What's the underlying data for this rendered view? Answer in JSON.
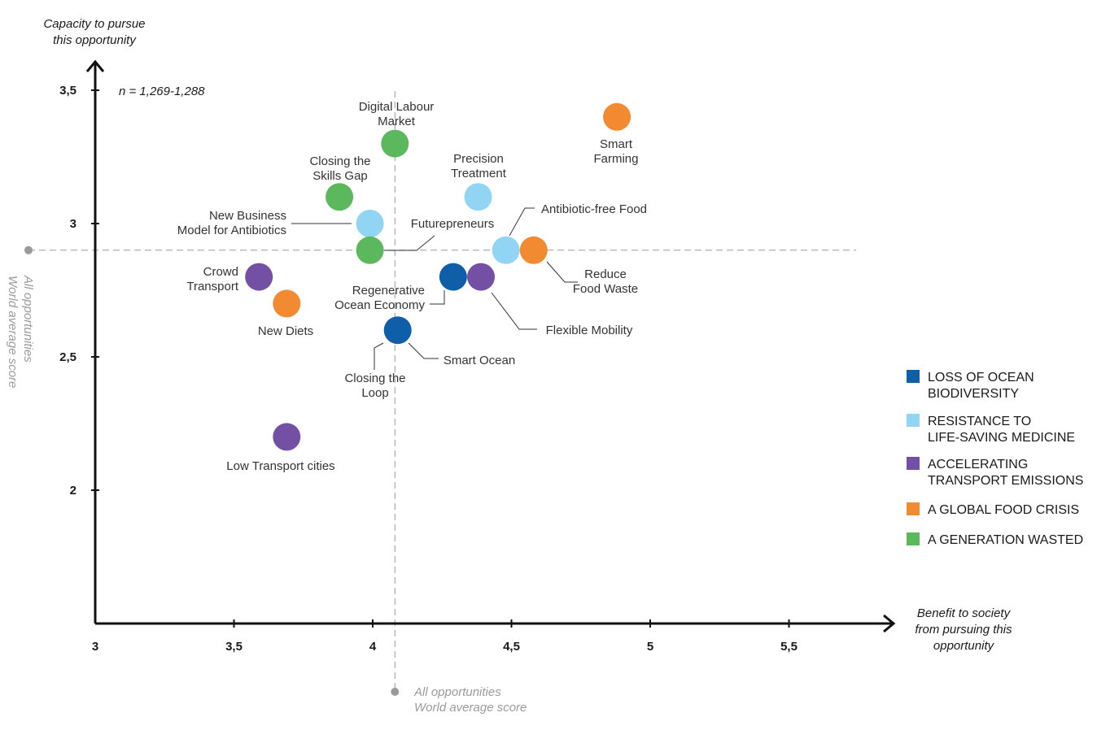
{
  "chart_data": {
    "type": "scatter",
    "xlabel": [
      "Benefit to society",
      "from pursuing this",
      "opportunity"
    ],
    "ylabel": [
      "Capacity to pursue",
      "this opportunity"
    ],
    "xlim": [
      3,
      5.9
    ],
    "ylim": [
      1.5,
      3.6
    ],
    "xticks": [
      {
        "value": 3,
        "label": "3"
      },
      {
        "value": 3.5,
        "label": "3,5"
      },
      {
        "value": 4,
        "label": "4"
      },
      {
        "value": 4.5,
        "label": "4,5"
      },
      {
        "value": 5,
        "label": "5"
      },
      {
        "value": 5.5,
        "label": "5,5"
      }
    ],
    "yticks": [
      {
        "value": 2,
        "label": "2"
      },
      {
        "value": 2.5,
        "label": "2,5"
      },
      {
        "value": 3,
        "label": "3"
      },
      {
        "value": 3.5,
        "label": "3,5"
      }
    ],
    "annotation": "n = 1,269-1,288",
    "world_average": {
      "x": 4.08,
      "y": 2.9,
      "x_label": [
        "All opportunities",
        "World average score"
      ],
      "y_label": [
        "All opportunities",
        "World average score"
      ]
    },
    "categories": [
      {
        "id": "ocean",
        "name": "LOSS OF OCEAN BIODIVERSITY",
        "lines": [
          "LOSS OF OCEAN",
          "BIODIVERSITY"
        ],
        "color": "#0f5fa8"
      },
      {
        "id": "medicine",
        "name": "RESISTANCE TO LIFE-SAVING MEDICINE",
        "lines": [
          "RESISTANCE TO",
          "LIFE-SAVING MEDICINE"
        ],
        "color": "#92d4f4"
      },
      {
        "id": "transport",
        "name": "ACCELERATING TRANSPORT EMISSIONS",
        "lines": [
          "ACCELERATING",
          "TRANSPORT EMISSIONS"
        ],
        "color": "#7450a4"
      },
      {
        "id": "food",
        "name": "A GLOBAL FOOD CRISIS",
        "lines": [
          "A GLOBAL FOOD CRISIS"
        ],
        "color": "#f28a32"
      },
      {
        "id": "generation",
        "name": "A GENERATION WASTED",
        "lines": [
          "A GENERATION WASTED"
        ],
        "color": "#5cb85c"
      }
    ],
    "points": [
      {
        "name": "Digital Labour Market",
        "lines": [
          "Digital Labour",
          "Market"
        ],
        "x": 4.08,
        "y": 3.3,
        "category": "generation"
      },
      {
        "name": "Smart Farming",
        "lines": [
          "Smart",
          "Farming"
        ],
        "x": 4.88,
        "y": 3.4,
        "category": "food"
      },
      {
        "name": "Closing the Skills Gap",
        "lines": [
          "Closing the",
          "Skills Gap"
        ],
        "x": 3.88,
        "y": 3.1,
        "category": "generation"
      },
      {
        "name": "Precision Treatment",
        "lines": [
          "Precision",
          "Treatment"
        ],
        "x": 4.38,
        "y": 3.1,
        "category": "medicine"
      },
      {
        "name": "New Business Model for Antibiotics",
        "lines": [
          "New Business",
          "Model for Antibiotics"
        ],
        "x": 3.99,
        "y": 3.0,
        "category": "medicine"
      },
      {
        "name": "Futurepreneurs",
        "lines": [
          "Futurepreneurs"
        ],
        "x": 3.99,
        "y": 2.9,
        "category": "generation"
      },
      {
        "name": "Antibiotic-free Food",
        "lines": [
          "Antibiotic-free Food"
        ],
        "x": 4.48,
        "y": 2.9,
        "category": "medicine"
      },
      {
        "name": "Reduce Food Waste",
        "lines": [
          "Reduce",
          "Food Waste"
        ],
        "x": 4.58,
        "y": 2.9,
        "category": "food"
      },
      {
        "name": "Crowd Transport",
        "lines": [
          "Crowd",
          "Transport"
        ],
        "x": 3.59,
        "y": 2.8,
        "category": "transport"
      },
      {
        "name": "Regenerative Ocean Economy",
        "lines": [
          "Regenerative",
          "Ocean Economy"
        ],
        "x": 4.29,
        "y": 2.8,
        "category": "ocean"
      },
      {
        "name": "Flexible Mobility",
        "lines": [
          "Flexible Mobility"
        ],
        "x": 4.39,
        "y": 2.8,
        "category": "transport"
      },
      {
        "name": "New Diets",
        "lines": [
          "New Diets"
        ],
        "x": 3.69,
        "y": 2.7,
        "category": "food"
      },
      {
        "name": "Smart Ocean",
        "lines": [
          "Smart Ocean"
        ],
        "x": 4.09,
        "y": 2.6,
        "category": "ocean"
      },
      {
        "name": "Closing the Loop",
        "lines": [
          "Closing the",
          "Loop"
        ],
        "x": 4.09,
        "y": 2.6,
        "category": "ocean",
        "hidden": true
      },
      {
        "name": "Low Transport cities",
        "lines": [
          "Low Transport cities"
        ],
        "x": 3.69,
        "y": 2.2,
        "category": "transport"
      }
    ]
  }
}
